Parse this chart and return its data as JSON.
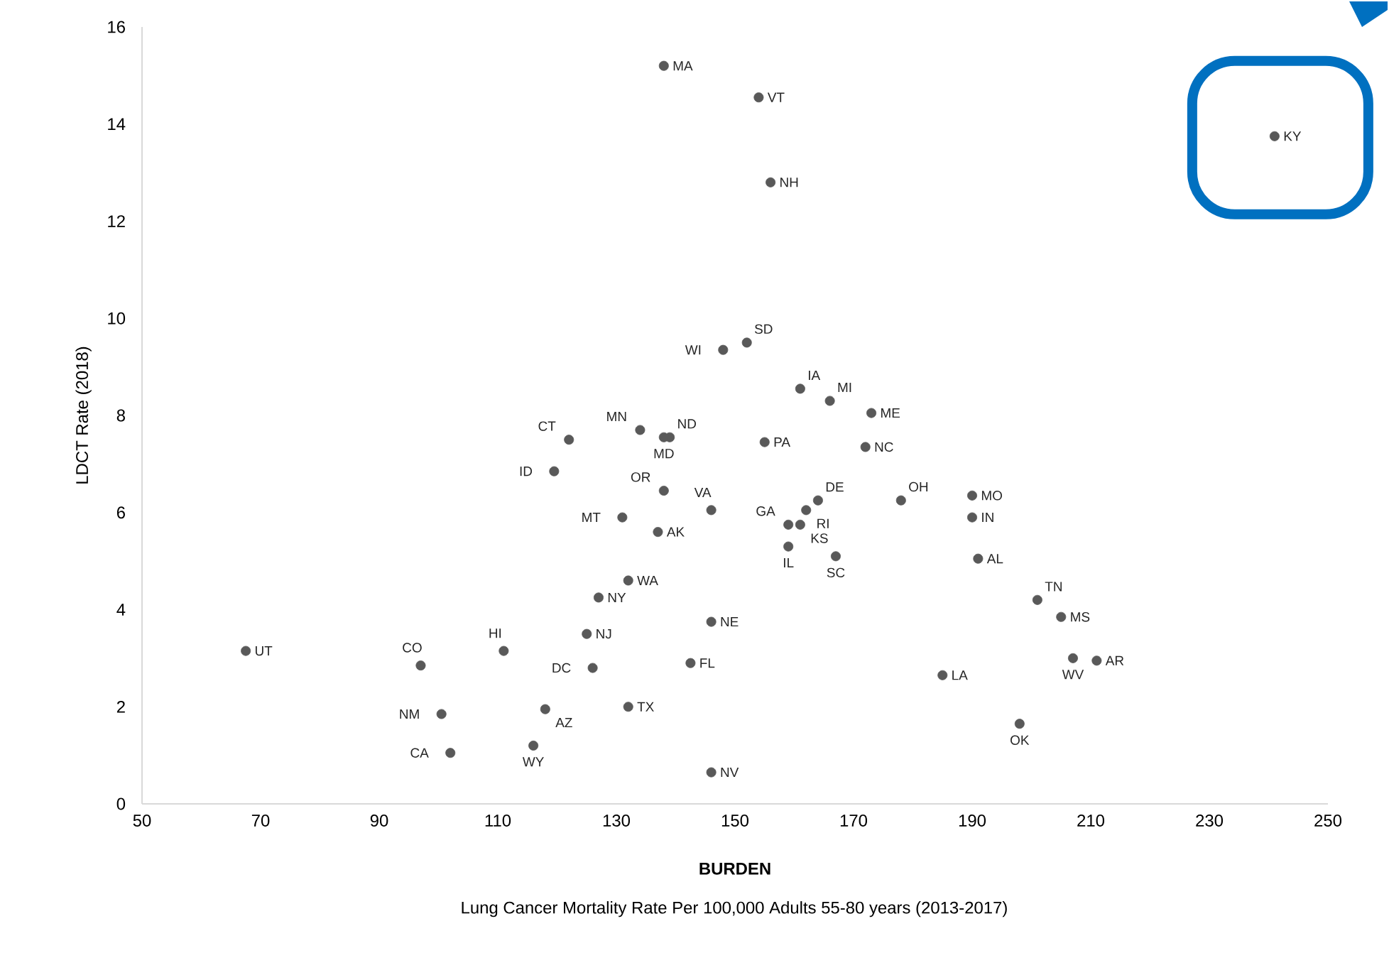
{
  "chart_data": {
    "type": "scatter",
    "xlabel": "BURDEN",
    "ylabel": "LDCT Rate (2018)",
    "color": "#595959",
    "grid": false,
    "xlim": [
      50,
      250
    ],
    "xticks": [
      50,
      70,
      90,
      110,
      130,
      150,
      170,
      190,
      210,
      230,
      250
    ],
    "ylim": [
      0,
      16
    ],
    "yticks": [
      0,
      2,
      4,
      6,
      8,
      10,
      12,
      14,
      16
    ],
    "x": [
      138,
      154,
      156,
      241,
      152,
      148,
      161,
      166,
      173,
      134,
      139,
      138,
      122,
      155,
      172,
      119.5,
      138,
      178,
      164,
      190,
      146,
      162,
      190,
      131,
      159,
      161,
      137,
      159,
      167,
      191,
      132,
      201,
      127,
      205,
      146,
      125,
      111,
      67.5,
      207,
      211,
      142.5,
      97,
      126,
      185,
      118,
      132,
      100.5,
      198,
      116,
      102,
      146
    ],
    "values": [
      15.2,
      14.55,
      12.8,
      13.75,
      9.5,
      9.35,
      8.55,
      8.3,
      8.05,
      7.7,
      7.55,
      7.55,
      7.5,
      7.45,
      7.35,
      6.85,
      6.45,
      6.25,
      6.25,
      6.35,
      6.05,
      6.05,
      5.9,
      5.9,
      5.75,
      5.75,
      5.6,
      5.3,
      5.1,
      5.05,
      4.6,
      4.2,
      4.25,
      3.85,
      3.75,
      3.5,
      3.15,
      3.15,
      3.0,
      2.95,
      2.9,
      2.85,
      2.8,
      2.65,
      1.95,
      2.0,
      1.85,
      1.65,
      1.2,
      1.05,
      0.65
    ],
    "annotations": [
      {
        "text": "MA",
        "x": 138,
        "y": 15.2
      },
      {
        "text": "VT",
        "x": 154,
        "y": 14.55
      },
      {
        "text": "NH",
        "x": 156,
        "y": 12.8
      },
      {
        "text": "KY",
        "x": 241,
        "y": 13.75
      },
      {
        "text": "SD",
        "x": 152,
        "y": 9.5
      },
      {
        "text": "WI",
        "x": 148,
        "y": 9.35
      },
      {
        "text": "IA",
        "x": 161,
        "y": 8.55
      },
      {
        "text": "MI",
        "x": 166,
        "y": 8.3
      },
      {
        "text": "ME",
        "x": 173,
        "y": 8.05
      },
      {
        "text": "MN",
        "x": 134,
        "y": 7.7
      },
      {
        "text": "ND",
        "x": 139,
        "y": 7.55
      },
      {
        "text": "MD",
        "x": 138,
        "y": 7.55
      },
      {
        "text": "CT",
        "x": 122,
        "y": 7.5
      },
      {
        "text": "PA",
        "x": 155,
        "y": 7.45
      },
      {
        "text": "NC",
        "x": 172,
        "y": 7.35
      },
      {
        "text": "ID",
        "x": 119.5,
        "y": 6.85
      },
      {
        "text": "OR",
        "x": 138,
        "y": 6.45
      },
      {
        "text": "OH",
        "x": 178,
        "y": 6.25
      },
      {
        "text": "DE",
        "x": 164,
        "y": 6.25
      },
      {
        "text": "MO",
        "x": 190,
        "y": 6.35
      },
      {
        "text": "VA",
        "x": 146,
        "y": 6.05
      },
      {
        "text": "RI",
        "x": 162,
        "y": 6.05
      },
      {
        "text": "IN",
        "x": 190,
        "y": 5.9
      },
      {
        "text": "MT",
        "x": 131,
        "y": 5.9
      },
      {
        "text": "GA",
        "x": 159,
        "y": 5.75
      },
      {
        "text": "KS",
        "x": 161,
        "y": 5.75
      },
      {
        "text": "AK",
        "x": 137,
        "y": 5.6
      },
      {
        "text": "IL",
        "x": 159,
        "y": 5.3
      },
      {
        "text": "SC",
        "x": 167,
        "y": 5.1
      },
      {
        "text": "AL",
        "x": 191,
        "y": 5.05
      },
      {
        "text": "WA",
        "x": 132,
        "y": 4.6
      },
      {
        "text": "TN",
        "x": 201,
        "y": 4.2
      },
      {
        "text": "NY",
        "x": 127,
        "y": 4.25
      },
      {
        "text": "MS",
        "x": 205,
        "y": 3.85
      },
      {
        "text": "NE",
        "x": 146,
        "y": 3.75
      },
      {
        "text": "NJ",
        "x": 125,
        "y": 3.5
      },
      {
        "text": "HI",
        "x": 111,
        "y": 3.15
      },
      {
        "text": "UT",
        "x": 67.5,
        "y": 3.15
      },
      {
        "text": "WV",
        "x": 207,
        "y": 3.0
      },
      {
        "text": "AR",
        "x": 211,
        "y": 2.95
      },
      {
        "text": "FL",
        "x": 142.5,
        "y": 2.9
      },
      {
        "text": "CO",
        "x": 97,
        "y": 2.85
      },
      {
        "text": "DC",
        "x": 126,
        "y": 2.8
      },
      {
        "text": "LA",
        "x": 185,
        "y": 2.65
      },
      {
        "text": "AZ",
        "x": 118,
        "y": 1.95
      },
      {
        "text": "TX",
        "x": 132,
        "y": 2.0
      },
      {
        "text": "NM",
        "x": 100.5,
        "y": 1.85
      },
      {
        "text": "OK",
        "x": 198,
        "y": 1.65
      },
      {
        "text": "WY",
        "x": 116,
        "y": 1.2
      },
      {
        "text": "CA",
        "x": 102,
        "y": 1.05
      },
      {
        "text": "NV",
        "x": 146,
        "y": 0.65
      },
      "Lung Cancer Mortality Rate Per 100,000 Adults 55-80 years (2013-2017)"
    ]
  }
}
